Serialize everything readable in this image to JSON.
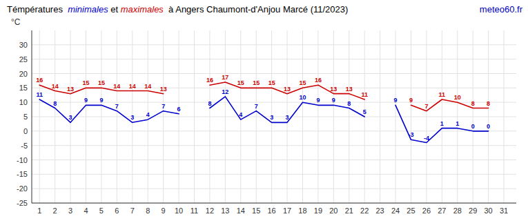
{
  "chart_data": {
    "type": "line",
    "title": "Témpératures  minimales et maximales  à Angers Chaumont-d'Anjou Marcé (11/2023)",
    "y_label": "°C",
    "annotations": [
      {
        "text": "meteo60.fr",
        "color": "#0000bb"
      }
    ],
    "x": [
      1,
      2,
      3,
      4,
      5,
      6,
      7,
      8,
      9,
      10,
      11,
      12,
      13,
      14,
      15,
      16,
      17,
      18,
      19,
      20,
      21,
      22,
      23,
      24,
      25,
      26,
      27,
      28,
      29,
      30,
      31
    ],
    "series": [
      {
        "name": "minimales",
        "color": "#0000cc",
        "values": [
          11,
          8,
          3,
          9,
          9,
          7,
          3,
          4,
          7,
          6,
          null,
          8,
          12,
          4,
          7,
          3,
          3,
          10,
          9,
          9,
          8,
          5,
          null,
          9,
          -3,
          -4,
          1,
          1,
          0,
          0,
          null
        ]
      },
      {
        "name": "maximales",
        "color": "#cc0000",
        "values": [
          16,
          14,
          13,
          15,
          15,
          14,
          14,
          14,
          13,
          null,
          null,
          16,
          17,
          15,
          15,
          15,
          13,
          15,
          16,
          13,
          13,
          11,
          null,
          null,
          9,
          7,
          11,
          10,
          8,
          8,
          null
        ]
      }
    ],
    "xlim": [
      0.5,
      31.8
    ],
    "xticks": [
      1,
      2,
      3,
      4,
      5,
      6,
      7,
      8,
      9,
      10,
      11,
      12,
      13,
      14,
      15,
      16,
      17,
      18,
      19,
      20,
      21,
      22,
      23,
      24,
      25,
      26,
      27,
      28,
      29,
      30,
      31
    ],
    "ylim": [
      -25,
      35
    ],
    "yticks": [
      -25,
      -20,
      -15,
      -10,
      -5,
      0,
      5,
      10,
      15,
      20,
      25,
      30
    ],
    "grid": true,
    "data_labels": true
  }
}
